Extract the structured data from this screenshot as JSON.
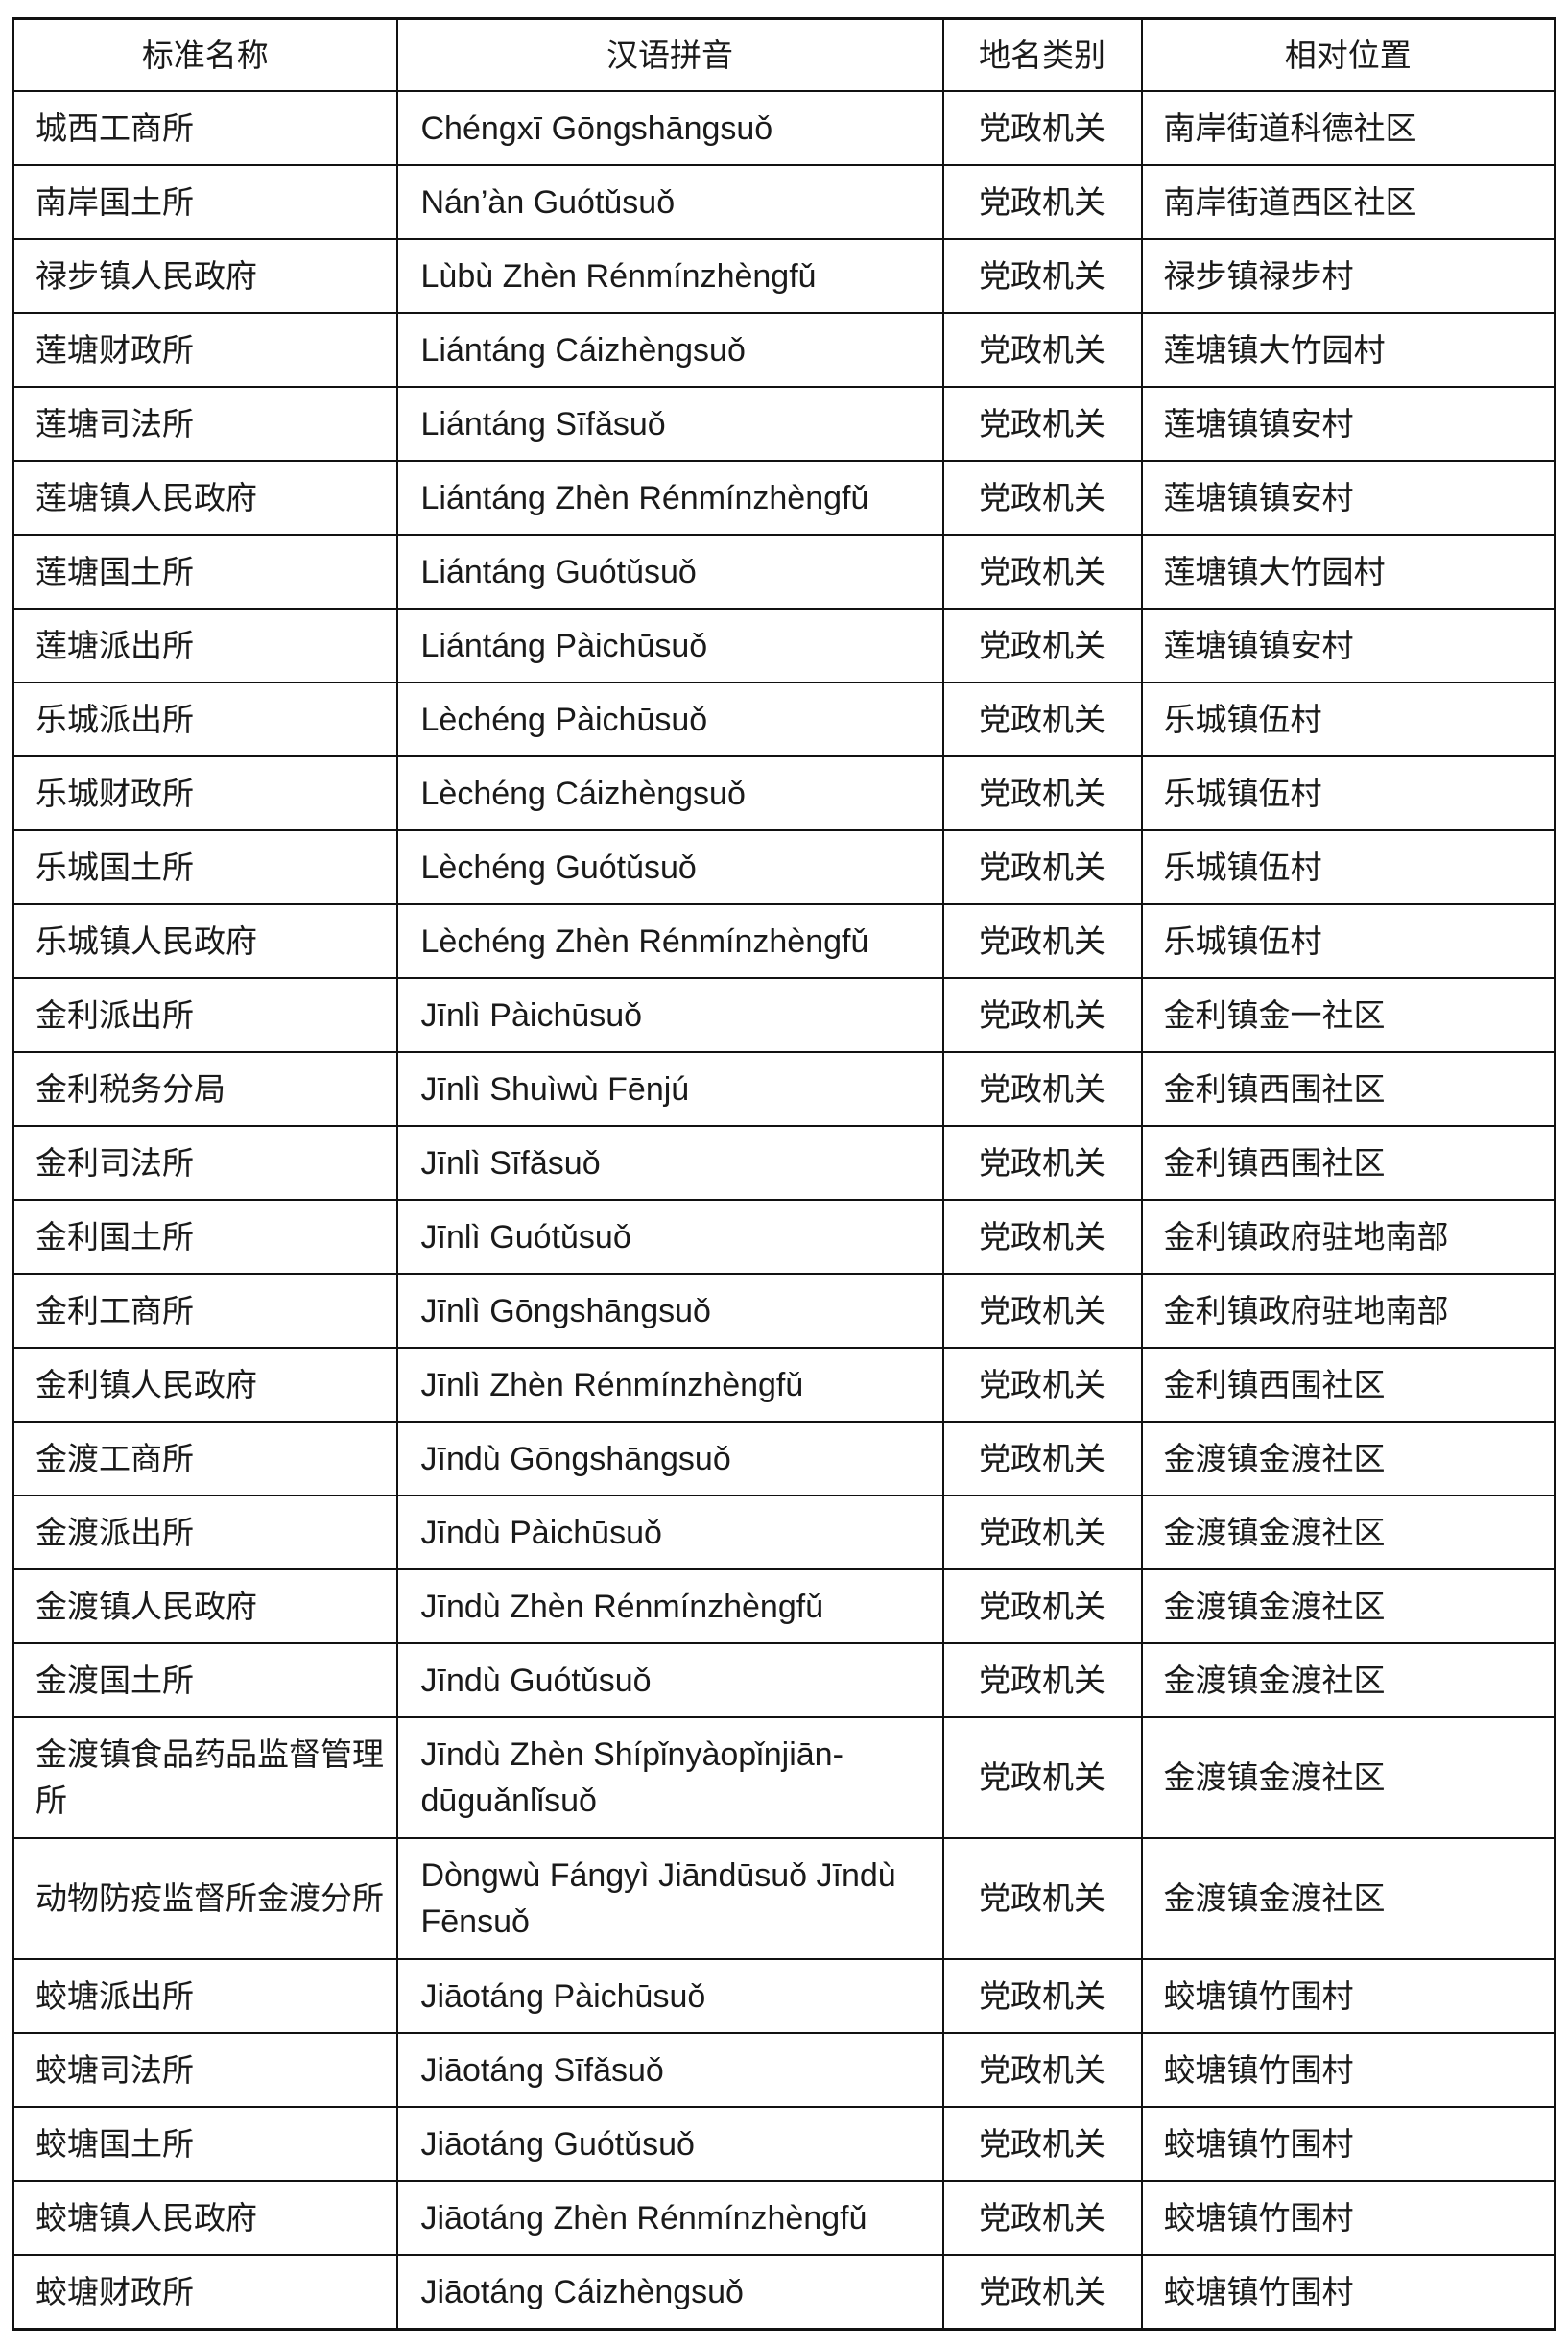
{
  "headers": [
    "标准名称",
    "汉语拼音",
    "地名类别",
    "相对位置"
  ],
  "rows": [
    [
      "城西工商所",
      "Chéngxī Gōngshāngsuǒ",
      "党政机关",
      "南岸街道科德社区"
    ],
    [
      "南岸国土所",
      "Nán’àn Guótǔsuǒ",
      "党政机关",
      "南岸街道西区社区"
    ],
    [
      "禄步镇人民政府",
      "Lùbù Zhèn Rénmínzhèngfǔ",
      "党政机关",
      "禄步镇禄步村"
    ],
    [
      "莲塘财政所",
      "Liántáng Cáizhèngsuǒ",
      "党政机关",
      "莲塘镇大竹园村"
    ],
    [
      "莲塘司法所",
      "Liántáng Sīfǎsuǒ",
      "党政机关",
      "莲塘镇镇安村"
    ],
    [
      "莲塘镇人民政府",
      "Liántáng Zhèn Rénmínzhèngfǔ",
      "党政机关",
      "莲塘镇镇安村"
    ],
    [
      "莲塘国土所",
      "Liántáng Guótǔsuǒ",
      "党政机关",
      "莲塘镇大竹园村"
    ],
    [
      "莲塘派出所",
      "Liántáng Pàichūsuǒ",
      "党政机关",
      "莲塘镇镇安村"
    ],
    [
      "乐城派出所",
      "Lèchéng Pàichūsuǒ",
      "党政机关",
      "乐城镇伍村"
    ],
    [
      "乐城财政所",
      "Lèchéng Cáizhèngsuǒ",
      "党政机关",
      "乐城镇伍村"
    ],
    [
      "乐城国土所",
      "Lèchéng Guótǔsuǒ",
      "党政机关",
      "乐城镇伍村"
    ],
    [
      "乐城镇人民政府",
      "Lèchéng Zhèn Rénmínzhèngfǔ",
      "党政机关",
      "乐城镇伍村"
    ],
    [
      "金利派出所",
      "Jīnlì Pàichūsuǒ",
      "党政机关",
      "金利镇金一社区"
    ],
    [
      "金利税务分局",
      "Jīnlì Shuìwù Fēnjú",
      "党政机关",
      "金利镇西围社区"
    ],
    [
      "金利司法所",
      "Jīnlì Sīfǎsuǒ",
      "党政机关",
      "金利镇西围社区"
    ],
    [
      "金利国土所",
      "Jīnlì Guótǔsuǒ",
      "党政机关",
      "金利镇政府驻地南部"
    ],
    [
      "金利工商所",
      "Jīnlì Gōngshāngsuǒ",
      "党政机关",
      "金利镇政府驻地南部"
    ],
    [
      "金利镇人民政府",
      "Jīnlì Zhèn Rénmínzhèngfǔ",
      "党政机关",
      "金利镇西围社区"
    ],
    [
      "金渡工商所",
      "Jīndù Gōngshāngsuǒ",
      "党政机关",
      "金渡镇金渡社区"
    ],
    [
      "金渡派出所",
      "Jīndù Pàichūsuǒ",
      "党政机关",
      "金渡镇金渡社区"
    ],
    [
      "金渡镇人民政府",
      "Jīndù Zhèn Rénmínzhèngfǔ",
      "党政机关",
      "金渡镇金渡社区"
    ],
    [
      "金渡国土所",
      "Jīndù Guótǔsuǒ",
      "党政机关",
      "金渡镇金渡社区"
    ],
    [
      "金渡镇食品药品监督管理所",
      "Jīndù Zhèn Shípǐnyàopǐnjiān-dūguǎnlǐsuǒ",
      "党政机关",
      "金渡镇金渡社区"
    ],
    [
      "动物防疫监督所金渡分所",
      "Dòngwù Fángyì Jiāndūsuǒ Jīndù Fēnsuǒ",
      "党政机关",
      "金渡镇金渡社区"
    ],
    [
      "蛟塘派出所",
      "Jiāotáng Pàichūsuǒ",
      "党政机关",
      "蛟塘镇竹围村"
    ],
    [
      "蛟塘司法所",
      "Jiāotáng Sīfǎsuǒ",
      "党政机关",
      "蛟塘镇竹围村"
    ],
    [
      "蛟塘国土所",
      "Jiāotáng Guótǔsuǒ",
      "党政机关",
      "蛟塘镇竹围村"
    ],
    [
      "蛟塘镇人民政府",
      "Jiāotáng Zhèn Rénmínzhèngfǔ",
      "党政机关",
      "蛟塘镇竹围村"
    ],
    [
      "蛟塘财政所",
      "Jiāotáng Cáizhèngsuǒ",
      "党政机关",
      "蛟塘镇竹围村"
    ]
  ]
}
